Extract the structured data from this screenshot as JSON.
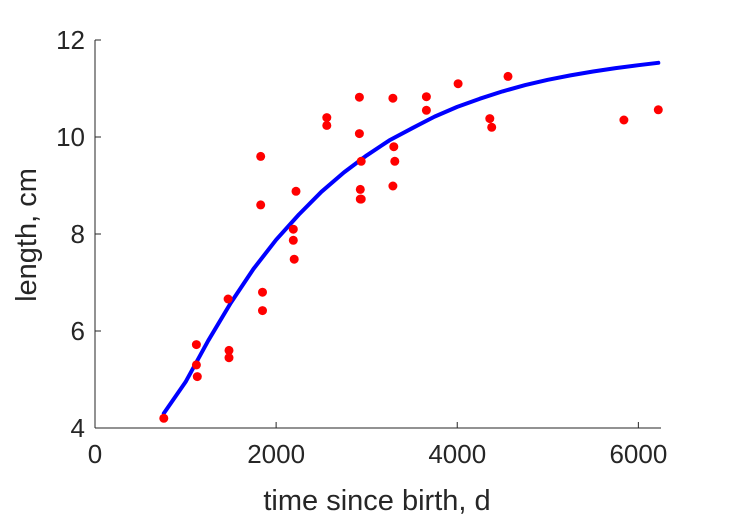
{
  "chart_data": {
    "type": "scatter",
    "title": "",
    "xlabel": "time since birth, d",
    "ylabel": "length, cm",
    "xlim": [
      0,
      6250
    ],
    "ylim": [
      4,
      12
    ],
    "x_ticks": [
      0,
      2000,
      4000,
      6000
    ],
    "y_ticks": [
      4,
      6,
      8,
      10,
      12
    ],
    "grid": false,
    "legend": "none",
    "colors": {
      "points": "#ff0000",
      "curve": "#0000ff",
      "axis": "#262626"
    },
    "series": [
      {
        "type": "scatter",
        "x": [
          760,
          1120,
          1120,
          1130,
          1470,
          1480,
          1480,
          1830,
          1830,
          1850,
          1850,
          2190,
          2190,
          2200,
          2220,
          2560,
          2560,
          2920,
          2920,
          2930,
          2930,
          2940,
          2940,
          3290,
          3290,
          3300,
          3310,
          3660,
          3660,
          4010,
          4360,
          4380,
          4560,
          5840,
          6220
        ],
        "y": [
          4.2,
          5.72,
          5.3,
          5.06,
          6.66,
          5.6,
          5.45,
          9.6,
          8.6,
          6.8,
          6.42,
          8.1,
          7.87,
          7.48,
          8.88,
          10.4,
          10.24,
          10.82,
          10.07,
          8.92,
          8.72,
          9.5,
          8.72,
          10.8,
          8.99,
          9.8,
          9.5,
          10.83,
          10.55,
          11.1,
          10.38,
          10.2,
          11.25,
          10.35,
          10.56
        ]
      },
      {
        "type": "line",
        "x": [
          760,
          1000,
          1250,
          1500,
          1750,
          2000,
          2250,
          2500,
          2750,
          3000,
          3250,
          3500,
          3750,
          4000,
          4250,
          4500,
          4750,
          5000,
          5250,
          5500,
          5750,
          6000,
          6220
        ],
        "y": [
          4.3,
          4.95,
          5.8,
          6.58,
          7.28,
          7.88,
          8.4,
          8.87,
          9.27,
          9.62,
          9.93,
          10.18,
          10.42,
          10.62,
          10.79,
          10.94,
          11.07,
          11.18,
          11.27,
          11.35,
          11.42,
          11.48,
          11.53
        ]
      }
    ]
  }
}
